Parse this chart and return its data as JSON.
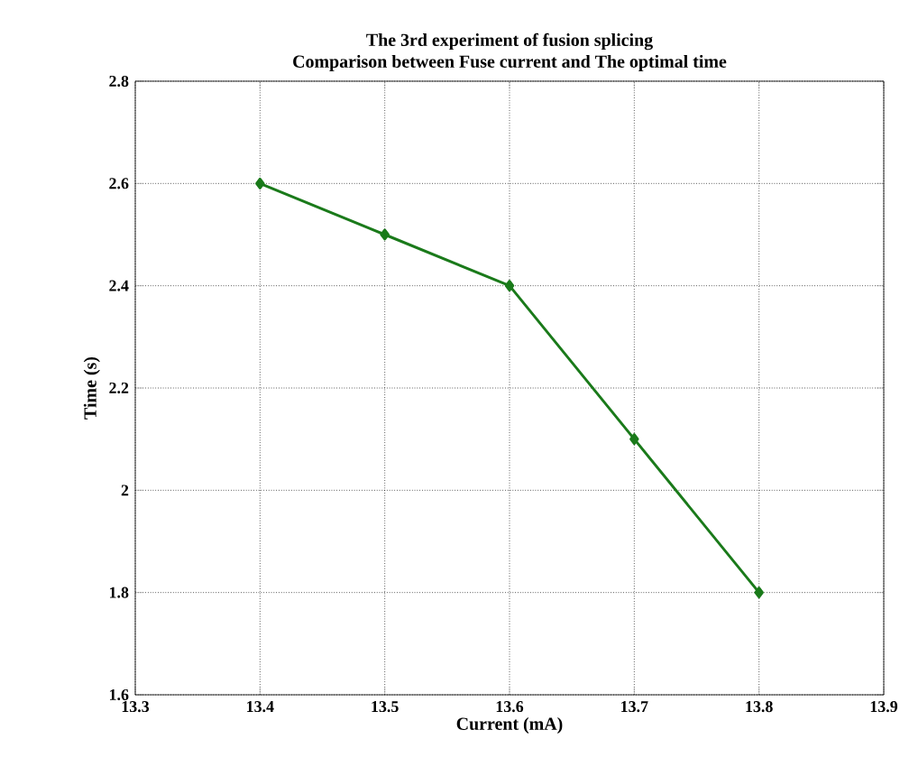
{
  "chart_data": {
    "type": "line",
    "title": "The 3rd experiment of fusion splicing",
    "subtitle": "Comparison between Fuse current and The optimal time",
    "xlabel": "Current (mA)",
    "ylabel": "Time (s)",
    "x": [
      13.4,
      13.5,
      13.6,
      13.7,
      13.8
    ],
    "series": [
      {
        "color": "#1a7a1a",
        "values": [
          2.6,
          2.5,
          2.4,
          2.1,
          1.8
        ]
      }
    ],
    "xlim": [
      13.3,
      13.9
    ],
    "xticks": [
      13.3,
      13.4,
      13.5,
      13.6,
      13.7,
      13.8,
      13.9
    ],
    "ylim": [
      1.6,
      2.8
    ],
    "yticks": [
      1.6,
      1.8,
      2,
      2.2,
      2.4,
      2.6,
      2.8
    ],
    "grid": true,
    "marker": "diamond",
    "line_style": "solid"
  }
}
